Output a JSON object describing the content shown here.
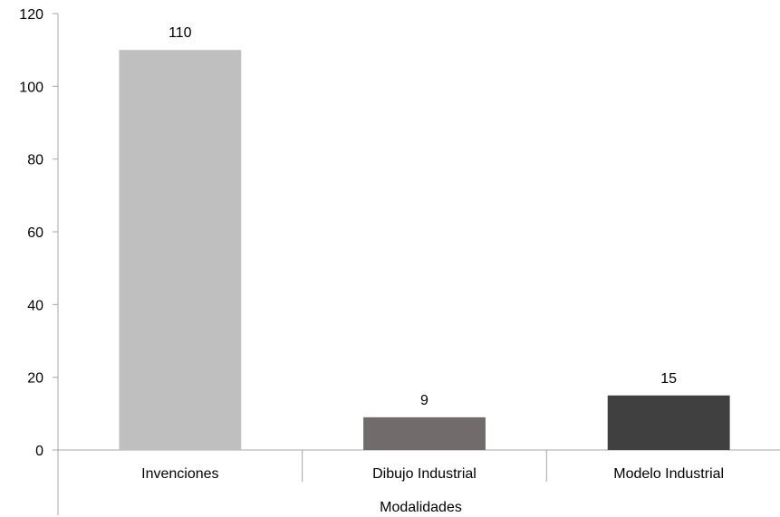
{
  "chart_data": {
    "type": "bar",
    "categories": [
      "Invenciones",
      "Dibujo Industrial",
      "Modelo Industrial"
    ],
    "values": [
      110,
      9,
      15
    ],
    "colors": [
      "#bfbfbf",
      "#716c6b",
      "#404040"
    ],
    "data_labels": [
      "110",
      "9",
      "15"
    ],
    "title": "",
    "xlabel": "Modalidades",
    "ylabel": "",
    "ylim": [
      0,
      120
    ],
    "yticks": [
      0,
      20,
      40,
      60,
      80,
      100,
      120
    ],
    "grid": false,
    "legend": "none"
  }
}
